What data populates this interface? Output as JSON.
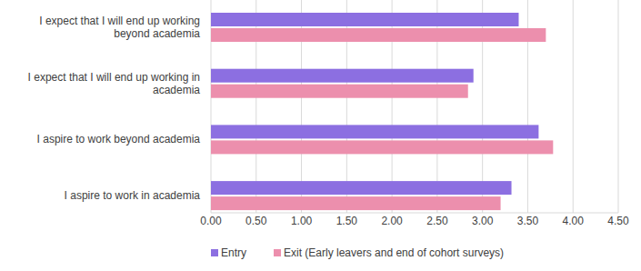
{
  "chart_data": {
    "type": "bar",
    "orientation": "horizontal",
    "grid": true,
    "legend": "bottom",
    "categories": [
      "I expect that I will end up working beyond academia",
      "I expect that I will end up working in academia",
      "I aspire to work beyond academia",
      "I aspire to work in academia"
    ],
    "series": [
      {
        "name": "Entry",
        "color": "#8c6fe1",
        "values": [
          3.4,
          2.9,
          3.62,
          3.32
        ]
      },
      {
        "name": "Exit (Early leavers and end of cohort surveys)",
        "color": "#ec8fad",
        "values": [
          3.7,
          2.84,
          3.78,
          3.2
        ]
      }
    ],
    "xlim": [
      0,
      4.5
    ],
    "xticks": [
      {
        "value": 0,
        "label": "0.00"
      },
      {
        "value": 0.5,
        "label": "0.50"
      },
      {
        "value": 1,
        "label": "1.00"
      },
      {
        "value": 1.5,
        "label": "1.50"
      },
      {
        "value": 2,
        "label": "2.00"
      },
      {
        "value": 2.5,
        "label": "2.50"
      },
      {
        "value": 3,
        "label": "3.00"
      },
      {
        "value": 3.5,
        "label": "3.50"
      },
      {
        "value": 4,
        "label": "4.00"
      },
      {
        "value": 4.5,
        "label": "4.50"
      }
    ]
  }
}
